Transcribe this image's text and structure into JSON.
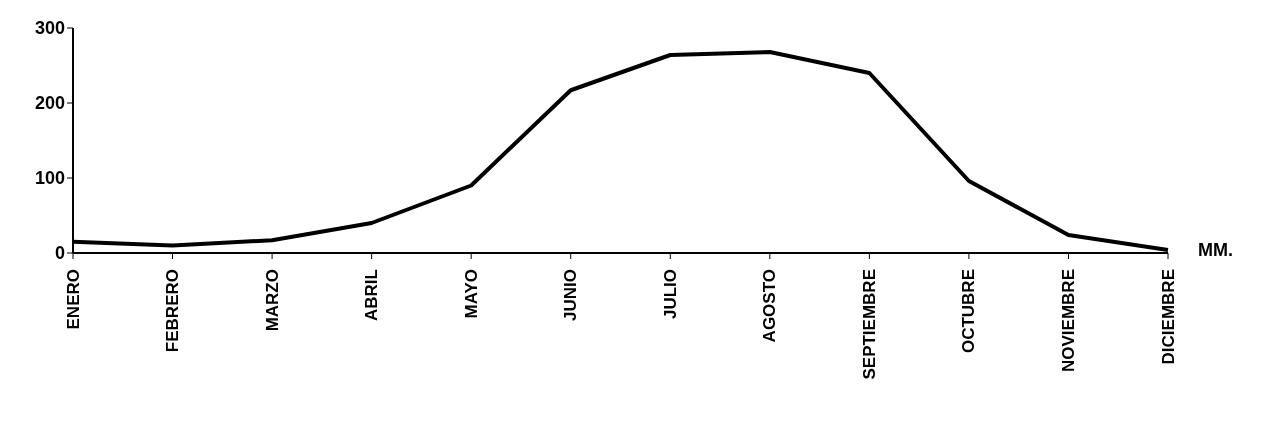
{
  "chart_data": {
    "type": "line",
    "ylabel": "MM.",
    "categories": [
      "ENERO",
      "FEBRERO",
      "MARZO",
      "ABRIL",
      "MAYO",
      "JUNIO",
      "JULIO",
      "AGOSTO",
      "SEPTIEMBRE",
      "OCTUBRE",
      "NOVIEMBRE",
      "DICIEMBRE"
    ],
    "series": [
      {
        "color": "#000000",
        "values": [
          15,
          10,
          17,
          40,
          90,
          217,
          264,
          268,
          240,
          96,
          24,
          4
        ]
      }
    ],
    "ylim": [
      0,
      300
    ],
    "yticks": [
      0,
      100,
      200,
      300
    ],
    "grid": false,
    "legend": false,
    "marker": "none",
    "line_style": "solid"
  }
}
